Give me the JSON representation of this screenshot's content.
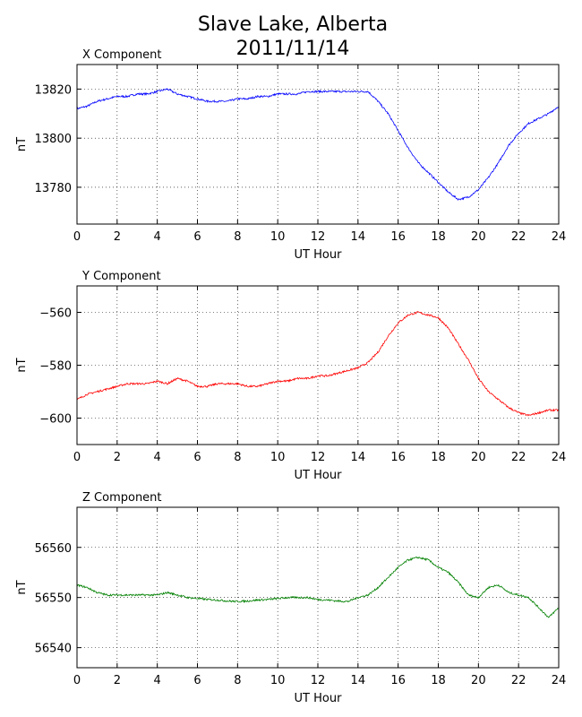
{
  "figure": {
    "title_line1": "Slave Lake, Alberta",
    "title_line2": "2011/11/14"
  },
  "chart_data": [
    {
      "type": "line",
      "title": "X Component",
      "xlabel": "UT Hour",
      "ylabel": "nT",
      "xlim": [
        0,
        24
      ],
      "ylim": [
        13765,
        13830
      ],
      "xticks": [
        0,
        2,
        4,
        6,
        8,
        10,
        12,
        14,
        16,
        18,
        20,
        22,
        24
      ],
      "yticks": [
        13780,
        13800,
        13820
      ],
      "grid": true,
      "color": "#0000ff",
      "series": [
        {
          "x": [
            0,
            0.5,
            1,
            1.5,
            2,
            2.5,
            3,
            3.5,
            4,
            4.5,
            5,
            5.5,
            6,
            6.5,
            7,
            7.5,
            8,
            8.5,
            9,
            9.5,
            10,
            10.5,
            11,
            11.5,
            12,
            12.5,
            13,
            13.5,
            14,
            14.5,
            15,
            15.5,
            16,
            16.5,
            17,
            17.5,
            18,
            18.5,
            19,
            19.5,
            20,
            20.5,
            21,
            21.5,
            22,
            22.5,
            23,
            23.5,
            24
          ],
          "y": [
            13812,
            13813,
            13815,
            13816,
            13817,
            13817,
            13818,
            13818,
            13819,
            13820,
            13818,
            13817,
            13816,
            13815,
            13815,
            13815,
            13816,
            13816,
            13817,
            13817,
            13818,
            13818,
            13818,
            13819,
            13819,
            13819,
            13819,
            13819,
            13819,
            13819,
            13815,
            13810,
            13803,
            13796,
            13790,
            13786,
            13782,
            13778,
            13775,
            13776,
            13779,
            13784,
            13790,
            13797,
            13802,
            13806,
            13808,
            13810,
            13813
          ]
        }
      ]
    },
    {
      "type": "line",
      "title": "Y Component",
      "xlabel": "UT Hour",
      "ylabel": "nT",
      "xlim": [
        0,
        24
      ],
      "ylim": [
        -610,
        -550
      ],
      "xticks": [
        0,
        2,
        4,
        6,
        8,
        10,
        12,
        14,
        16,
        18,
        20,
        22,
        24
      ],
      "yticks": [
        -560,
        -580,
        -600
      ],
      "ytick_labels": [
        "−560",
        "−580",
        "−600"
      ],
      "grid": true,
      "color": "#ff0000",
      "series": [
        {
          "x": [
            0,
            0.5,
            1,
            1.5,
            2,
            2.5,
            3,
            3.5,
            4,
            4.5,
            5,
            5.5,
            6,
            6.5,
            7,
            7.5,
            8,
            8.5,
            9,
            9.5,
            10,
            10.5,
            11,
            11.5,
            12,
            12.5,
            13,
            13.5,
            14,
            14.5,
            15,
            15.5,
            16,
            16.5,
            17,
            17.5,
            18,
            18.5,
            19,
            19.5,
            20,
            20.5,
            21,
            21.5,
            22,
            22.5,
            23,
            23.5,
            24
          ],
          "y": [
            -593,
            -591,
            -590,
            -589,
            -588,
            -587,
            -587,
            -587,
            -586,
            -587,
            -585,
            -586,
            -588,
            -588,
            -587,
            -587,
            -587,
            -588,
            -588,
            -587,
            -586,
            -586,
            -585,
            -585,
            -584,
            -584,
            -583,
            -582,
            -581,
            -579,
            -575,
            -569,
            -564,
            -561,
            -560,
            -561,
            -562,
            -566,
            -572,
            -578,
            -585,
            -590,
            -593,
            -596,
            -598,
            -599,
            -598,
            -597,
            -597
          ]
        }
      ]
    },
    {
      "type": "line",
      "title": "Z Component",
      "xlabel": "UT Hour",
      "ylabel": "nT",
      "xlim": [
        0,
        24
      ],
      "ylim": [
        56536,
        56568
      ],
      "xticks": [
        0,
        2,
        4,
        6,
        8,
        10,
        12,
        14,
        16,
        18,
        20,
        22,
        24
      ],
      "yticks": [
        56540,
        56550,
        56560
      ],
      "grid": true,
      "color": "#008000",
      "series": [
        {
          "x": [
            0,
            0.5,
            1,
            1.5,
            2,
            2.5,
            3,
            3.5,
            4,
            4.5,
            5,
            5.5,
            6,
            6.5,
            7,
            7.5,
            8,
            8.5,
            9,
            9.5,
            10,
            10.5,
            11,
            11.5,
            12,
            12.5,
            13,
            13.5,
            14,
            14.5,
            15,
            15.5,
            16,
            16.5,
            17,
            17.5,
            18,
            18.5,
            19,
            19.5,
            20,
            20.5,
            21,
            21.5,
            22,
            22.5,
            23,
            23.5,
            24
          ],
          "y": [
            56552.5,
            56552,
            56551,
            56550.5,
            56550.5,
            56550.5,
            56550.5,
            56550.5,
            56550.5,
            56551,
            56550.5,
            56550,
            56549.8,
            56549.6,
            56549.5,
            56549.3,
            56549.2,
            56549.3,
            56549.5,
            56549.6,
            56549.8,
            56550,
            56550,
            56550,
            56549.6,
            56549.5,
            56549.3,
            56549.2,
            56550,
            56550.5,
            56552,
            56554,
            56556,
            56557.5,
            56558,
            56557.5,
            56556,
            56555,
            56553,
            56550.5,
            56550,
            56552,
            56552.5,
            56551,
            56550.5,
            56550,
            56548,
            56546,
            56548
          ]
        }
      ]
    }
  ]
}
